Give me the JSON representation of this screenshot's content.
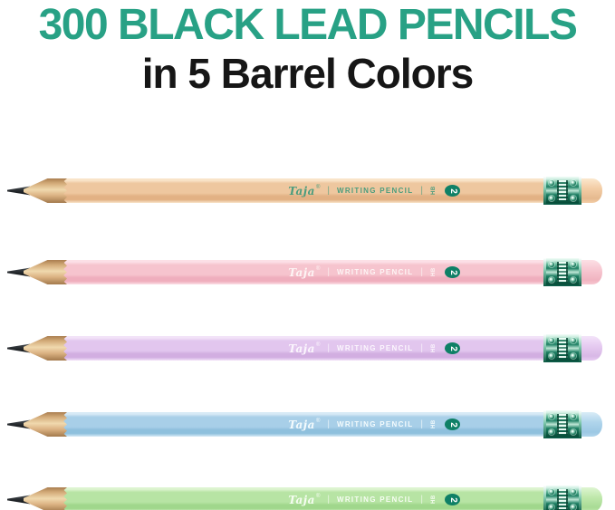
{
  "headline": {
    "line1": "300 BLACK LEAD PENCILS",
    "line2": "in 5 Barrel Colors",
    "accent_color": "#28a185",
    "text_color": "#161616"
  },
  "pencil_print": {
    "brand": "Taja",
    "reg_mark": "®",
    "separator": "|",
    "product": "WRITING PENCIL",
    "grade": "HB",
    "grade_number": "2",
    "badge_color": "#0f8066"
  },
  "pencils": [
    {
      "name": "peach",
      "barrel_light": "#f9e4c9",
      "barrel_main": "#eec79f",
      "barrel_dark": "#e2b184",
      "eraser": "#f3cda6",
      "eraser_light": "#fbe7cd",
      "eraser_dark": "#e5b98e",
      "print_color": "#4a9c7d"
    },
    {
      "name": "pink",
      "barrel_light": "#fce0e6",
      "barrel_main": "#f6c4ce",
      "barrel_dark": "#efaebd",
      "eraser": "#f7c7d1",
      "eraser_light": "#fcdfe5",
      "eraser_dark": "#f0b3c0",
      "print_color": "#fdf4f4"
    },
    {
      "name": "lavender",
      "barrel_light": "#f2e2f8",
      "barrel_main": "#e2c6ee",
      "barrel_dark": "#d2aee1",
      "eraser": "#e6cbf1",
      "eraser_light": "#f3e3f9",
      "eraser_dark": "#d8b8e6",
      "print_color": "#fbf6fd"
    },
    {
      "name": "blue",
      "barrel_light": "#d7eaf6",
      "barrel_main": "#a8cfe8",
      "barrel_dark": "#8ec0dd",
      "eraser": "#b0d5ec",
      "eraser_light": "#d9ecf7",
      "eraser_dark": "#9cc8e4",
      "print_color": "#f4fbfd"
    },
    {
      "name": "green",
      "barrel_light": "#ddf4d0",
      "barrel_main": "#b7e4a4",
      "barrel_dark": "#a0d78c",
      "eraser": "#bfe8ac",
      "eraser_light": "#def5d1",
      "eraser_dark": "#a8db94",
      "print_color": "#f6fdf2"
    }
  ],
  "ferrule_colors": {
    "light": "#f2fdf8",
    "mid": "#1d7f63",
    "dark": "#084c39"
  }
}
